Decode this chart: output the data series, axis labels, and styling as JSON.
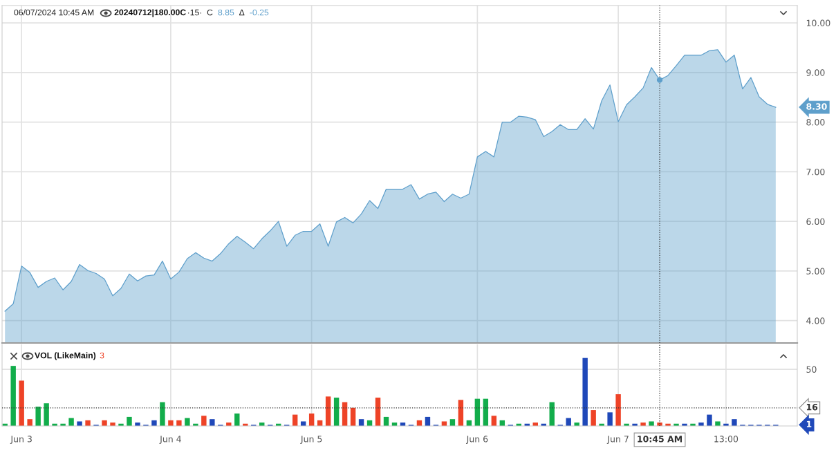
{
  "chart_data": [
    {
      "type": "area",
      "annotations": [
        "06/07/2024 10:45 AM",
        "20240712|180.00C",
        "·15·  C",
        "8.85",
        "Δ",
        "-0.25",
        "8.30"
      ],
      "categories": [
        null,
        null,
        "Jun 3",
        null,
        null,
        null,
        null,
        null,
        null,
        null,
        null,
        null,
        null,
        null,
        null,
        null,
        null,
        null,
        null,
        null,
        "Jun 4",
        null,
        null,
        null,
        null,
        null,
        null,
        null,
        null,
        null,
        null,
        null,
        null,
        null,
        null,
        null,
        null,
        "Jun 5",
        null,
        null,
        null,
        null,
        null,
        null,
        null,
        null,
        null,
        null,
        null,
        null,
        null,
        null,
        null,
        null,
        null,
        null,
        null,
        "Jun 6",
        null,
        null,
        null,
        null,
        null,
        null,
        null,
        null,
        null,
        null,
        null,
        null,
        null,
        null,
        null,
        null,
        "Jun 7",
        null,
        null,
        null,
        null,
        "10:45 AM",
        null,
        null,
        null,
        null,
        null,
        null,
        null,
        "13:00",
        null,
        null,
        null,
        null,
        null,
        null
      ],
      "values": [
        4.19,
        4.34,
        5.1,
        4.97,
        4.67,
        4.79,
        4.86,
        4.62,
        4.79,
        5.13,
        5.01,
        4.95,
        4.84,
        4.5,
        4.65,
        4.94,
        4.8,
        4.9,
        4.92,
        5.2,
        4.84,
        4.98,
        5.25,
        5.37,
        5.26,
        5.2,
        5.35,
        5.55,
        5.7,
        5.58,
        5.45,
        5.65,
        5.81,
        6.0,
        5.5,
        5.72,
        5.8,
        5.8,
        5.95,
        5.5,
        5.99,
        6.08,
        5.97,
        6.15,
        6.42,
        6.26,
        6.65,
        6.65,
        6.65,
        6.74,
        6.45,
        6.55,
        6.59,
        6.4,
        6.55,
        6.47,
        6.55,
        7.3,
        7.41,
        7.3,
        8.0,
        8.0,
        8.12,
        8.1,
        8.05,
        7.71,
        7.81,
        7.95,
        7.85,
        7.85,
        8.07,
        7.86,
        8.43,
        8.75,
        8.01,
        8.35,
        8.51,
        8.69,
        9.1,
        8.85,
        8.94,
        9.14,
        9.35,
        9.35,
        9.35,
        9.44,
        9.46,
        9.21,
        9.35,
        8.67,
        8.9,
        8.51,
        8.36,
        8.3
      ],
      "color": "#5e9fcb",
      "ylim": [
        3.55,
        10.35
      ],
      "yticks": [
        {
          "value": 4,
          "label": "4.00"
        },
        {
          "value": 5,
          "label": "5.00"
        },
        {
          "value": 6,
          "label": "6.00"
        },
        {
          "value": 7,
          "label": "7.00"
        },
        {
          "value": 8,
          "label": "8.00"
        },
        {
          "value": 9,
          "label": "9.00"
        },
        {
          "value": 10,
          "label": "10.00"
        }
      ],
      "grid": true,
      "tick_labels": "y",
      "ref_lines": [
        {
          "axis": "x",
          "value": "10:45 AM",
          "line_style": "dotted",
          "color": "#333333"
        }
      ]
    },
    {
      "type": "bar",
      "title": "VOL (LikeMain)",
      "annotations": [
        "3",
        "1"
      ],
      "categories": [
        null,
        null,
        "Jun 3",
        null,
        null,
        null,
        null,
        null,
        null,
        null,
        null,
        null,
        null,
        null,
        null,
        null,
        null,
        null,
        null,
        null,
        "Jun 4",
        null,
        null,
        null,
        null,
        null,
        null,
        null,
        null,
        null,
        null,
        null,
        null,
        null,
        null,
        null,
        null,
        "Jun 5",
        null,
        null,
        null,
        null,
        null,
        null,
        null,
        null,
        null,
        null,
        null,
        null,
        null,
        null,
        null,
        null,
        null,
        null,
        null,
        "Jun 6",
        null,
        null,
        null,
        null,
        null,
        null,
        null,
        null,
        null,
        null,
        null,
        null,
        null,
        null,
        null,
        null,
        "Jun 7",
        null,
        null,
        null,
        null,
        "10:45 AM",
        null,
        null,
        null,
        null,
        null,
        null,
        null,
        "13:00",
        null,
        null,
        null,
        null,
        null,
        null
      ],
      "values": [
        2,
        53,
        40,
        6,
        17,
        20,
        2,
        2,
        7,
        4,
        5,
        1,
        5,
        3,
        2,
        8,
        3,
        1,
        5,
        21,
        5,
        5,
        7,
        2,
        9,
        6,
        1,
        3,
        11,
        2,
        1,
        3,
        1,
        2,
        1,
        10,
        4,
        11,
        5,
        26,
        25,
        21,
        16,
        6,
        5,
        25,
        8,
        3,
        3,
        1,
        5,
        8,
        1,
        4,
        6,
        23,
        5,
        24,
        24,
        9,
        5,
        1,
        2,
        2,
        3,
        2,
        21,
        1,
        7,
        3,
        60,
        14,
        2,
        12,
        28,
        2,
        2,
        3,
        4,
        3,
        2,
        2,
        2,
        2,
        3,
        10,
        4,
        2,
        6,
        1,
        1,
        1,
        1,
        1
      ],
      "colors": [
        "#12ad4b",
        "#12ad4b",
        "#ee4327",
        "#ee4327",
        "#12ad4b",
        "#12ad4b",
        "#12ad4b",
        "#12ad4b",
        "#12ad4b",
        "#1f48b9",
        "#ee4327",
        "#1f48b9",
        "#ee4327",
        "#ee4327",
        "#12ad4b",
        "#12ad4b",
        "#1f48b9",
        "#1f48b9",
        "#1f48b9",
        "#12ad4b",
        "#ee4327",
        "#ee4327",
        "#12ad4b",
        "#12ad4b",
        "#ee4327",
        "#1f48b9",
        "#1f48b9",
        "#ee4327",
        "#12ad4b",
        "#ee4327",
        "#1f48b9",
        "#12ad4b",
        "#1f48b9",
        "#12ad4b",
        "#1f48b9",
        "#ee4327",
        "#1f48b9",
        "#ee4327",
        "#ee4327",
        "#ee4327",
        "#12ad4b",
        "#ee4327",
        "#ee4327",
        "#1f48b9",
        "#12ad4b",
        "#ee4327",
        "#12ad4b",
        "#12ad4b",
        "#1f48b9",
        "#1f48b9",
        "#ee4327",
        "#1f48b9",
        "#1f48b9",
        "#ee4327",
        "#12ad4b",
        "#ee4327",
        "#12ad4b",
        "#12ad4b",
        "#12ad4b",
        "#ee4327",
        "#12ad4b",
        "#1f48b9",
        "#12ad4b",
        "#1f48b9",
        "#ee4327",
        "#1f48b9",
        "#12ad4b",
        "#1f48b9",
        "#1f48b9",
        "#12ad4b",
        "#1f48b9",
        "#ee4327",
        "#12ad4b",
        "#1f48b9",
        "#ee4327",
        "#12ad4b",
        "#1f48b9",
        "#ee4327",
        "#12ad4b",
        "#ee4327",
        "#ee4327",
        "#12ad4b",
        "#1f48b9",
        "#12ad4b",
        "#1f48b9",
        "#1f48b9",
        "#12ad4b",
        "#1f48b9",
        "#1f48b9",
        "#1f48b9",
        "#1f48b9",
        "#1f48b9",
        "#1f48b9",
        "#1f48b9"
      ],
      "ylim": [
        0,
        72
      ],
      "yticks": [
        50
      ],
      "grid": true,
      "ref_lines": [
        {
          "axis": "y",
          "value": 16,
          "label": "16",
          "line_style": "dotted",
          "color": "#333333"
        },
        {
          "axis": "x",
          "value": "10:45 AM",
          "line_style": "dotted",
          "color": "#333333"
        }
      ]
    }
  ]
}
